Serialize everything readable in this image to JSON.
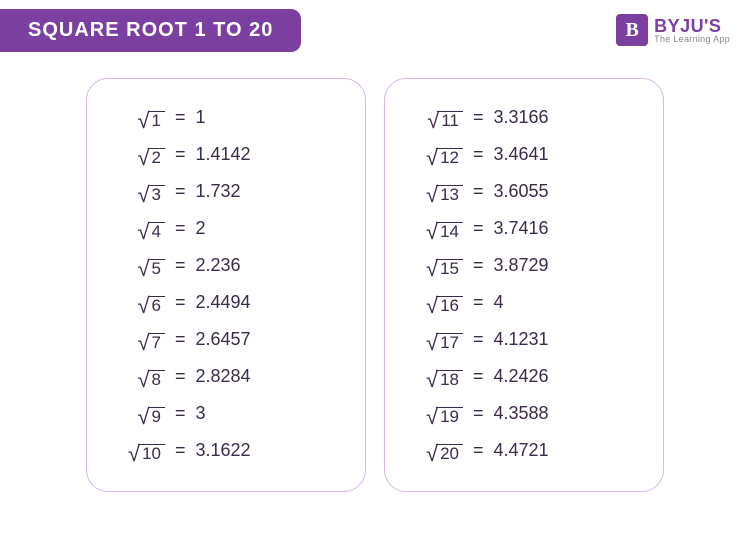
{
  "header": {
    "title": "SQUARE ROOT 1 TO 20",
    "logo_letter": "B",
    "logo_brand": "BYJU'S",
    "logo_tag": "The Learning App"
  },
  "colors": {
    "brand": "#7b3fa0",
    "panel_border": "#d6b8e8",
    "text": "#3b2b48",
    "background": "#ffffff"
  },
  "symbols": {
    "surd": "√",
    "equals": "="
  },
  "left_panel": {
    "rows": [
      {
        "n": "1",
        "value": "1"
      },
      {
        "n": "2",
        "value": "1.4142"
      },
      {
        "n": "3",
        "value": "1.732"
      },
      {
        "n": "4",
        "value": "2"
      },
      {
        "n": "5",
        "value": "2.236"
      },
      {
        "n": "6",
        "value": "2.4494"
      },
      {
        "n": "7",
        "value": "2.6457"
      },
      {
        "n": "8",
        "value": "2.8284"
      },
      {
        "n": "9",
        "value": "3"
      },
      {
        "n": "10",
        "value": "3.1622"
      }
    ]
  },
  "right_panel": {
    "rows": [
      {
        "n": "11",
        "value": "3.3166"
      },
      {
        "n": "12",
        "value": "3.4641"
      },
      {
        "n": "13",
        "value": "3.6055"
      },
      {
        "n": "14",
        "value": "3.7416"
      },
      {
        "n": "15",
        "value": "3.8729"
      },
      {
        "n": "16",
        "value": "4"
      },
      {
        "n": "17",
        "value": "4.1231"
      },
      {
        "n": "18",
        "value": "4.2426"
      },
      {
        "n": "19",
        "value": "4.3588"
      },
      {
        "n": "20",
        "value": "4.4721"
      }
    ]
  }
}
